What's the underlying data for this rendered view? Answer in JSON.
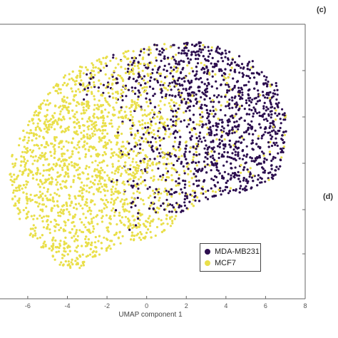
{
  "colors": {
    "mda": "#2c0e4f",
    "mcf": "#e9df4a",
    "axis": "#666666"
  },
  "panels": {
    "c": "(c)",
    "d": "(d)"
  },
  "chart_data": {
    "type": "scatter",
    "xlabel": "UMAP component 1",
    "ylabel": "",
    "xlim": [
      -7.4,
      8
    ],
    "xticks": [
      -6,
      -4,
      -2,
      0,
      2,
      4,
      6,
      8
    ],
    "grid": false,
    "legend_position": "bottom-right",
    "series": [
      {
        "name": "MDA-MB231",
        "color": "#2c0e4f",
        "x_range": [
          -5.5,
          7
        ],
        "center": [
          3.8,
          null
        ],
        "description_points": "dense cluster concentrated on the right side (x ≈ 0 to 7), sparser toward the upper-left"
      },
      {
        "name": "MCF7",
        "color": "#e9df4a",
        "x_range": [
          -7,
          3
        ],
        "center": [
          -3.5,
          null
        ],
        "description_points": "dense cluster concentrated on the left/lower-left side (x ≈ -7 to 0), sparser toward the right"
      }
    ]
  }
}
